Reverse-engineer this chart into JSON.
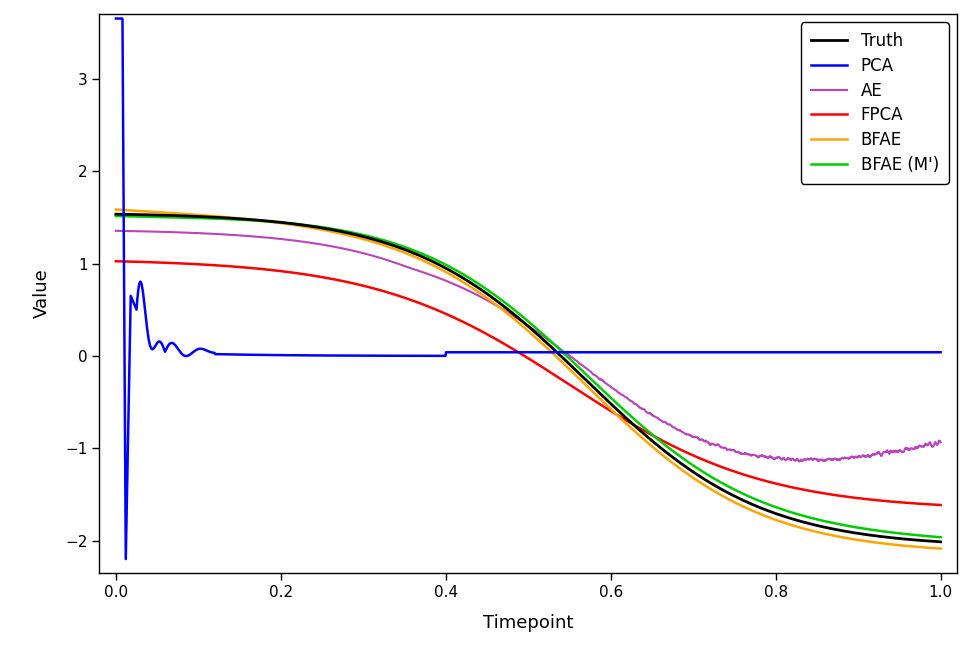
{
  "xlabel": "Timepoint",
  "ylabel": "Value",
  "xlim": [
    -0.02,
    1.02
  ],
  "ylim": [
    -2.35,
    3.7
  ],
  "xticks": [
    0.0,
    0.2,
    0.4,
    0.6,
    0.8,
    1.0
  ],
  "yticks": [
    -2,
    -1,
    0,
    1,
    2,
    3
  ],
  "background_color": "#ffffff",
  "legend_labels": [
    "Truth",
    "PCA",
    "AE",
    "FPCA",
    "BFAE",
    "BFAE (M')"
  ],
  "legend_colors": [
    "#000000",
    "#0000ff",
    "#bb44bb",
    "#ff0000",
    "#ffa500",
    "#00cc00"
  ],
  "line_widths": [
    2.0,
    1.8,
    1.5,
    1.8,
    1.8,
    1.8
  ]
}
